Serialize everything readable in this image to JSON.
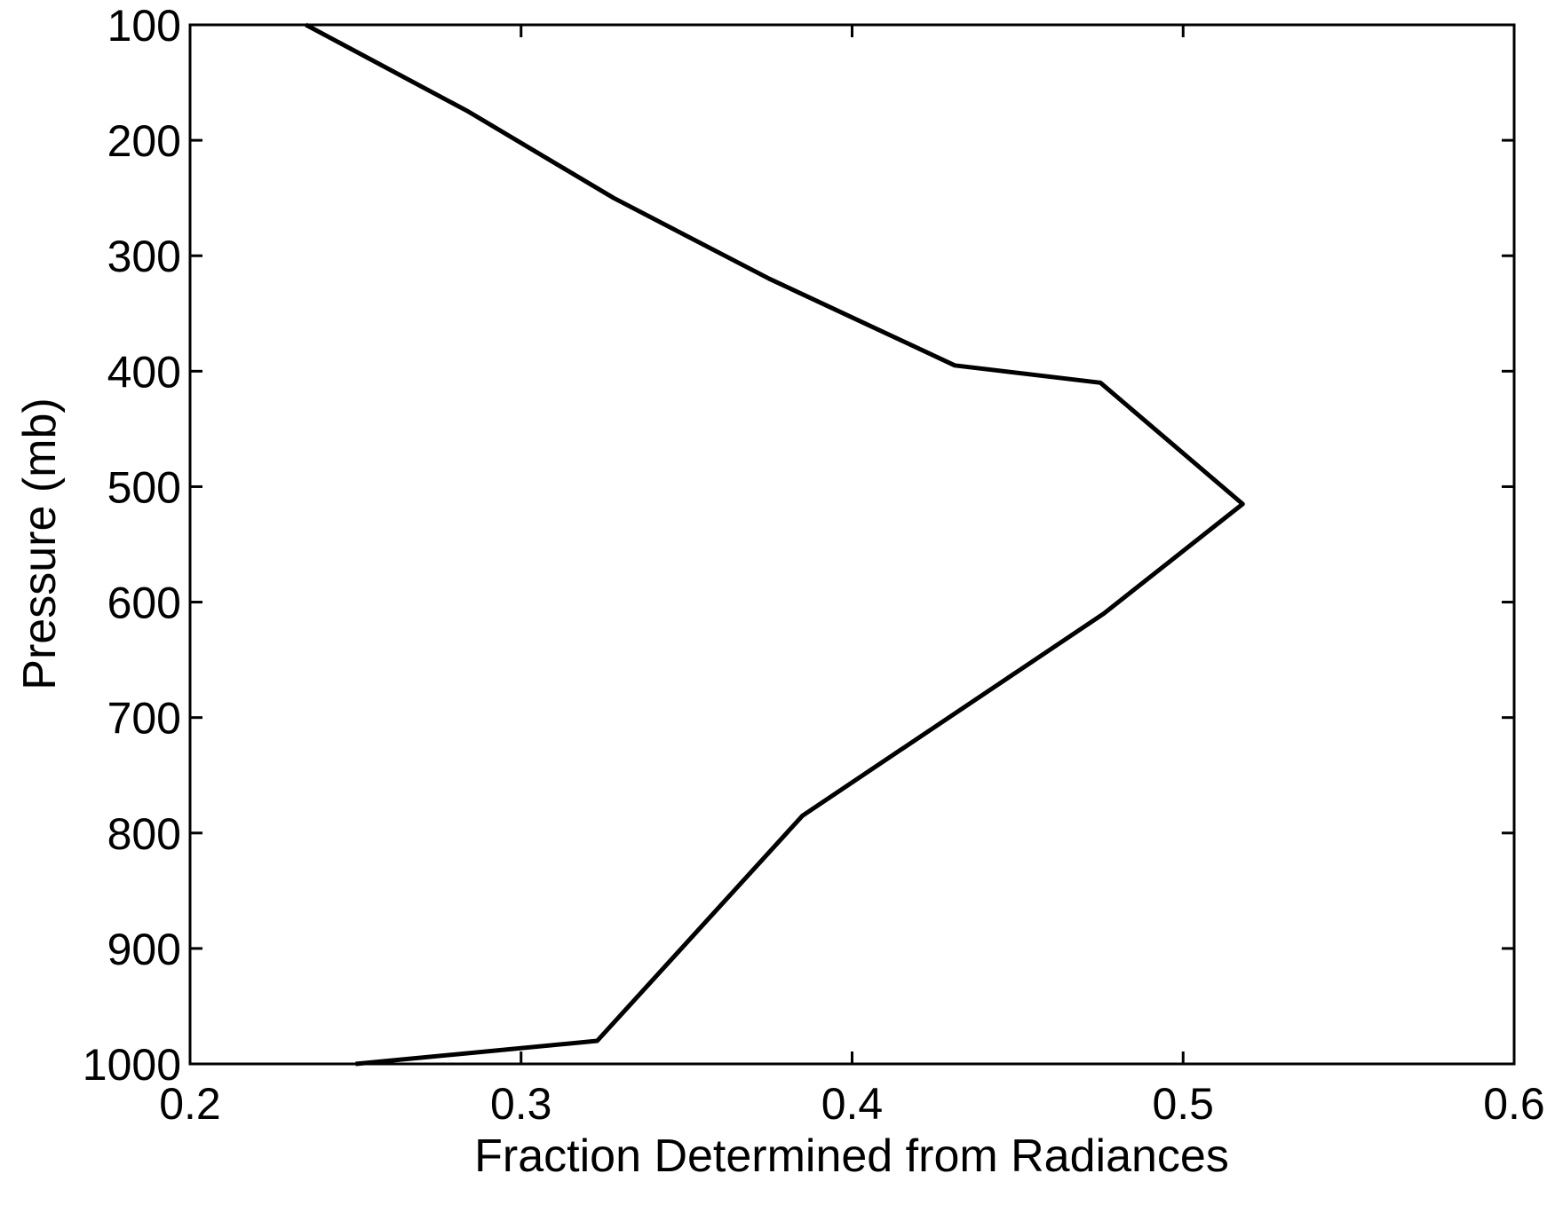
{
  "chart_data": {
    "type": "line",
    "title": "",
    "xlabel": "Fraction Determined from Radiances",
    "ylabel": "Pressure (mb)",
    "xlim": [
      0.2,
      0.6
    ],
    "ylim": [
      1000,
      100
    ],
    "y_reversed": true,
    "grid": false,
    "x_ticks": [
      0.2,
      0.3,
      0.4,
      0.5,
      0.6
    ],
    "x_tick_labels": [
      "0.2",
      "0.3",
      "0.4",
      "0.5",
      "0.6"
    ],
    "y_ticks": [
      100,
      200,
      300,
      400,
      500,
      600,
      700,
      800,
      900,
      1000
    ],
    "y_tick_labels": [
      "100",
      "200",
      "300",
      "400",
      "500",
      "600",
      "700",
      "800",
      "900",
      "1000"
    ],
    "series": [
      {
        "color": "#000000",
        "x": [
          0.235,
          0.284,
          0.328,
          0.375,
          0.431,
          0.475,
          0.518,
          0.476,
          0.385,
          0.323,
          0.25
        ],
        "y": [
          100,
          175,
          250,
          320,
          395,
          410,
          515,
          610,
          785,
          980,
          1000
        ]
      }
    ]
  }
}
